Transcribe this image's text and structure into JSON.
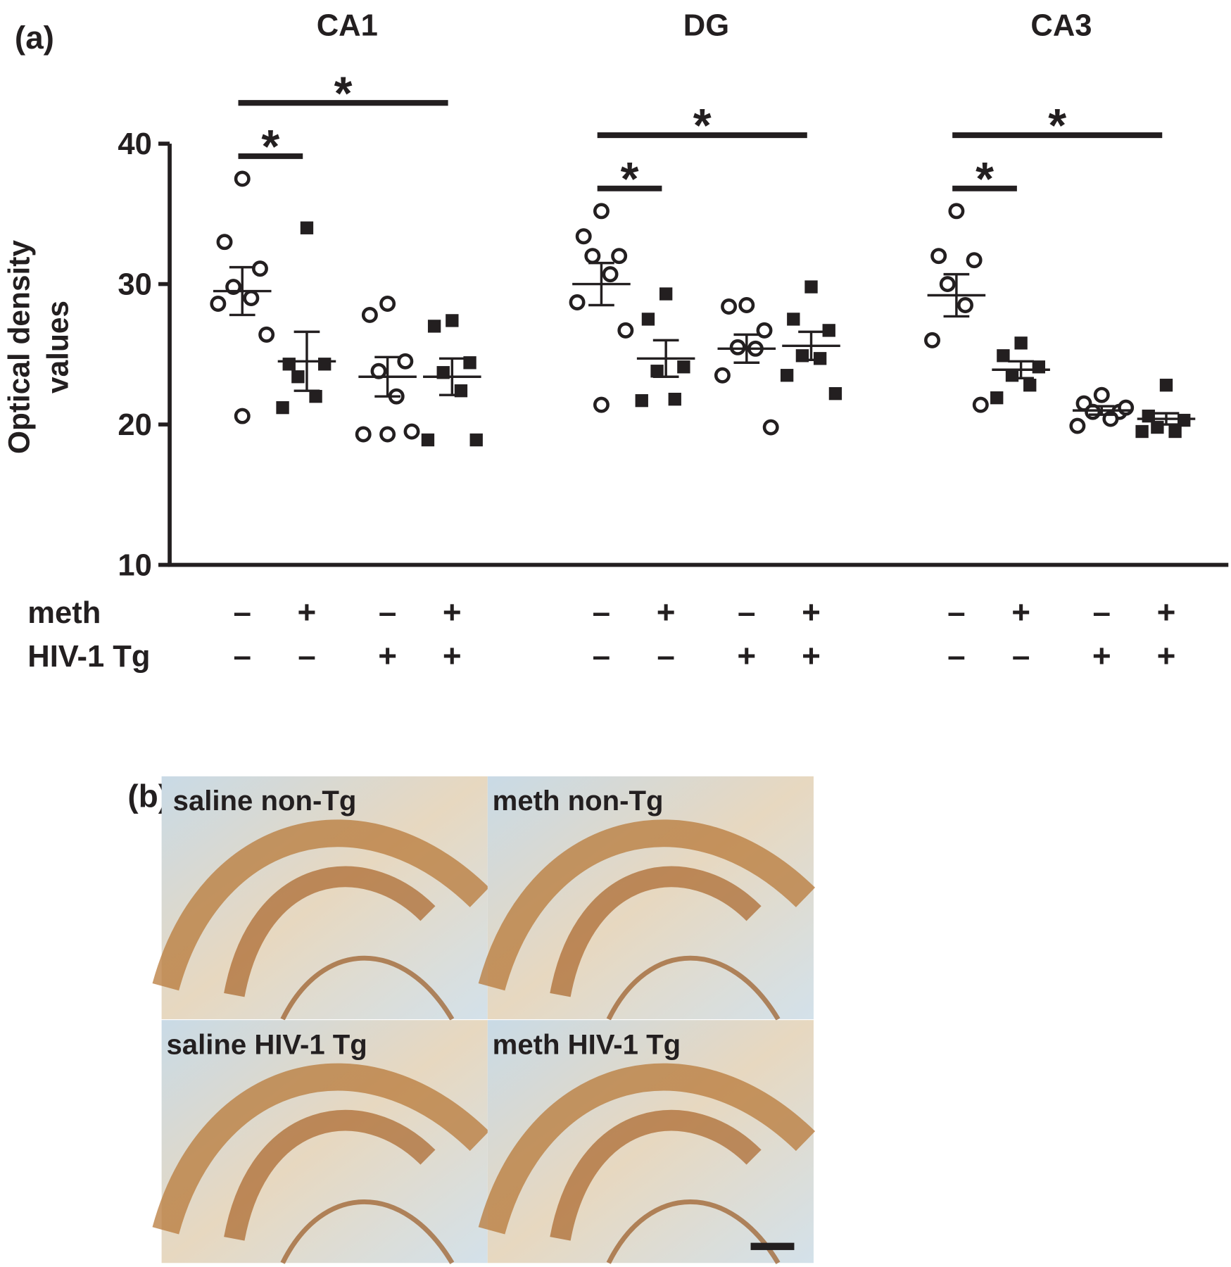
{
  "panel_a": {
    "label": "(a)"
  },
  "chart_data": {
    "type": "dot",
    "ylabel": [
      "Optical density",
      "values"
    ],
    "ylim": [
      10,
      40
    ],
    "yticks": [
      10,
      20,
      30,
      40
    ],
    "color": "#231f20",
    "row_labels": [
      "meth",
      "HIV-1 Tg"
    ],
    "conditions": [
      {
        "signs": [
          "–",
          "–"
        ],
        "marker": "circle"
      },
      {
        "signs": [
          "+",
          "–"
        ],
        "marker": "square"
      },
      {
        "signs": [
          "–",
          "+"
        ],
        "marker": "circle"
      },
      {
        "signs": [
          "+",
          "+"
        ],
        "marker": "square"
      }
    ],
    "panels": [
      {
        "name": "CA1",
        "groups": [
          {
            "values": [
              37.5,
              33.0,
              31.1,
              29.8,
              29.0,
              28.6,
              26.4,
              20.6
            ],
            "mean": 29.5,
            "sem": 1.7
          },
          {
            "values": [
              34.0,
              24.3,
              24.3,
              23.4,
              22.0,
              21.2
            ],
            "mean": 24.5,
            "sem": 2.1
          },
          {
            "values": [
              28.6,
              27.8,
              24.5,
              23.8,
              22.0,
              19.3,
              19.5,
              19.3
            ],
            "mean": 23.4,
            "sem": 1.4
          },
          {
            "values": [
              27.4,
              27.0,
              24.4,
              23.7,
              22.4,
              18.9,
              18.9
            ],
            "mean": 23.4,
            "sem": 1.3
          }
        ],
        "significance": [
          {
            "label": "*",
            "pair": [
              0,
              1
            ]
          },
          {
            "label": "*",
            "pair": [
              0,
              3
            ]
          }
        ]
      },
      {
        "name": "DG",
        "groups": [
          {
            "values": [
              35.2,
              33.4,
              32.0,
              32.0,
              30.7,
              28.7,
              26.7,
              21.4
            ],
            "mean": 30.0,
            "sem": 1.5
          },
          {
            "values": [
              29.3,
              27.5,
              24.1,
              23.8,
              21.8,
              21.7
            ],
            "mean": 24.7,
            "sem": 1.3
          },
          {
            "values": [
              28.5,
              28.4,
              26.7,
              25.5,
              25.4,
              23.5,
              19.8
            ],
            "mean": 25.4,
            "sem": 1.0
          },
          {
            "values": [
              29.8,
              27.5,
              26.7,
              24.9,
              24.7,
              23.5,
              22.2
            ],
            "mean": 25.6,
            "sem": 1.0
          }
        ],
        "significance": [
          {
            "label": "*",
            "pair": [
              0,
              1
            ]
          },
          {
            "label": "*",
            "pair": [
              0,
              3
            ]
          }
        ]
      },
      {
        "name": "CA3",
        "groups": [
          {
            "values": [
              35.2,
              32.0,
              31.7,
              30.0,
              28.5,
              26.0,
              21.4
            ],
            "mean": 29.2,
            "sem": 1.5
          },
          {
            "values": [
              25.8,
              24.9,
              24.1,
              23.5,
              22.8,
              21.9
            ],
            "mean": 23.9,
            "sem": 0.6
          },
          {
            "values": [
              22.1,
              21.5,
              20.9,
              20.9,
              20.4,
              19.9,
              21.2
            ],
            "mean": 21.0,
            "sem": 0.3
          },
          {
            "values": [
              22.8,
              20.6,
              20.3,
              19.8,
              19.5,
              19.5
            ],
            "mean": 20.4,
            "sem": 0.4
          }
        ],
        "significance": [
          {
            "label": "*",
            "pair": [
              0,
              1
            ]
          },
          {
            "label": "*",
            "pair": [
              0,
              3
            ]
          }
        ]
      }
    ]
  },
  "panel_b": {
    "label": "(b)",
    "images": [
      "saline non-Tg",
      "meth non-Tg",
      "saline HIV-1 Tg",
      "meth HIV-1 Tg"
    ]
  }
}
